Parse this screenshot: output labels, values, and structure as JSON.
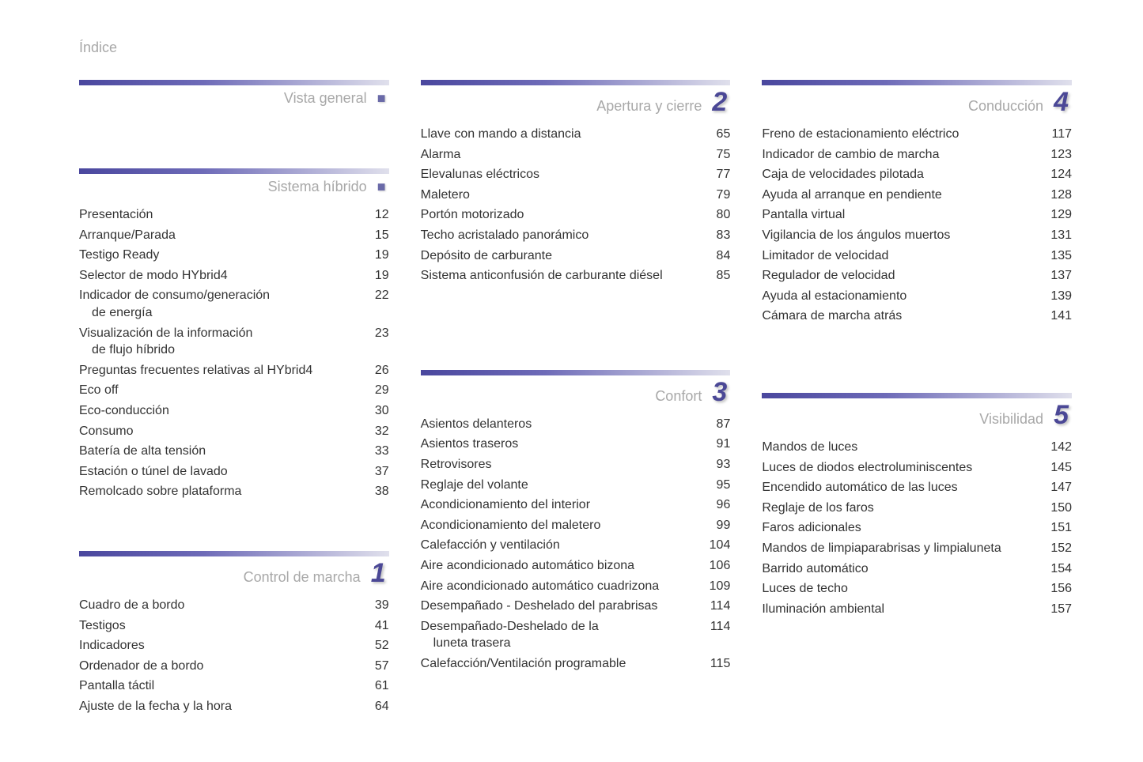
{
  "page_title": "Índice",
  "colors": {
    "bar_gradient_start": "#4a479e",
    "bar_gradient_mid": "#6e6bb8",
    "bar_gradient_end": "#e0e0ec",
    "section_number": "#4b4896",
    "muted_text": "#a8a8a8",
    "body_text": "#333333",
    "background": "#ffffff"
  },
  "typography": {
    "body_fontsize": 16,
    "title_fontsize": 18,
    "number_fontsize": 34
  },
  "sections": {
    "vista_general": {
      "title": "Vista general",
      "number": "■",
      "entries": []
    },
    "sistema_hibrido": {
      "title": "Sistema híbrido",
      "number": "■",
      "entries": [
        {
          "label": "Presentación",
          "page": "12"
        },
        {
          "label": "Arranque/Parada",
          "page": "15"
        },
        {
          "label": "Testigo Ready",
          "page": "19"
        },
        {
          "label": "Selector de modo HYbrid4",
          "page": "19"
        },
        {
          "label": "Indicador de consumo/generación",
          "label2": "de energía",
          "page": "22"
        },
        {
          "label": "Visualización de la información",
          "label2": "de flujo híbrido",
          "page": "23"
        },
        {
          "label": "Preguntas frecuentes relativas al HYbrid4",
          "page": "26"
        },
        {
          "label": "Eco off",
          "page": "29"
        },
        {
          "label": "Eco-conducción",
          "page": "30"
        },
        {
          "label": "Consumo",
          "page": "32"
        },
        {
          "label": "Batería de alta tensión",
          "page": "33"
        },
        {
          "label": "Estación o túnel de lavado",
          "page": "37"
        },
        {
          "label": "Remolcado sobre plataforma",
          "page": "38"
        }
      ]
    },
    "control_marcha": {
      "title": "Control de marcha",
      "number": "1",
      "entries": [
        {
          "label": "Cuadro de a bordo",
          "page": "39"
        },
        {
          "label": "Testigos",
          "page": "41"
        },
        {
          "label": "Indicadores",
          "page": "52"
        },
        {
          "label": "Ordenador de a bordo",
          "page": "57"
        },
        {
          "label": "Pantalla táctil",
          "page": "61"
        },
        {
          "label": "Ajuste de la fecha y la hora",
          "page": "64"
        }
      ]
    },
    "apertura_cierre": {
      "title": "Apertura y cierre",
      "number": "2",
      "entries": [
        {
          "label": "Llave con mando a distancia",
          "page": "65"
        },
        {
          "label": "Alarma",
          "page": "75"
        },
        {
          "label": "Elevalunas eléctricos",
          "page": "77"
        },
        {
          "label": "Maletero",
          "page": "79"
        },
        {
          "label": "Portón motorizado",
          "page": "80"
        },
        {
          "label": "Techo acristalado panorámico",
          "page": "83"
        },
        {
          "label": "Depósito de carburante",
          "page": "84"
        },
        {
          "label": "Sistema anticonfusión de carburante diésel",
          "page": "85"
        }
      ]
    },
    "confort": {
      "title": "Confort",
      "number": "3",
      "entries": [
        {
          "label": "Asientos delanteros",
          "page": "87"
        },
        {
          "label": "Asientos traseros",
          "page": "91"
        },
        {
          "label": "Retrovisores",
          "page": "93"
        },
        {
          "label": "Reglaje del volante",
          "page": "95"
        },
        {
          "label": "Acondicionamiento del interior",
          "page": "96"
        },
        {
          "label": "Acondicionamiento del maletero",
          "page": "99"
        },
        {
          "label": "Calefacción y ventilación",
          "page": "104"
        },
        {
          "label": "Aire acondicionado automático bizona",
          "page": "106"
        },
        {
          "label": "Aire acondicionado automático cuadrizona",
          "page": "109"
        },
        {
          "label": "Desempañado - Deshelado del parabrisas",
          "page": "114"
        },
        {
          "label": "Desempañado-Deshelado de la",
          "label2": "luneta trasera",
          "page": "114"
        },
        {
          "label": "Calefacción/Ventilación programable",
          "page": "115"
        }
      ]
    },
    "conduccion": {
      "title": "Conducción",
      "number": "4",
      "entries": [
        {
          "label": "Freno de estacionamiento eléctrico",
          "page": "117"
        },
        {
          "label": "Indicador de cambio de marcha",
          "page": "123"
        },
        {
          "label": "Caja de velocidades pilotada",
          "page": "124"
        },
        {
          "label": "Ayuda al arranque en pendiente",
          "page": "128"
        },
        {
          "label": "Pantalla virtual",
          "page": "129"
        },
        {
          "label": "Vigilancia de los ángulos muertos",
          "page": "131"
        },
        {
          "label": "Limitador de velocidad",
          "page": "135"
        },
        {
          "label": "Regulador de velocidad",
          "page": "137"
        },
        {
          "label": "Ayuda al estacionamiento",
          "page": "139"
        },
        {
          "label": "Cámara de marcha atrás",
          "page": "141"
        }
      ]
    },
    "visibilidad": {
      "title": "Visibilidad",
      "number": "5",
      "entries": [
        {
          "label": "Mandos de luces",
          "page": "142"
        },
        {
          "label": "Luces de diodos electroluminiscentes",
          "page": "145"
        },
        {
          "label": "Encendido automático de las luces",
          "page": "147"
        },
        {
          "label": "Reglaje de los faros",
          "page": "150"
        },
        {
          "label": "Faros adicionales",
          "page": "151"
        },
        {
          "label": "Mandos de limpiaparabrisas y limpialuneta",
          "page": "152"
        },
        {
          "label": "Barrido automático",
          "page": "154"
        },
        {
          "label": "Luces de techo",
          "page": "156"
        },
        {
          "label": "Iluminación ambiental",
          "page": "157"
        }
      ]
    }
  }
}
